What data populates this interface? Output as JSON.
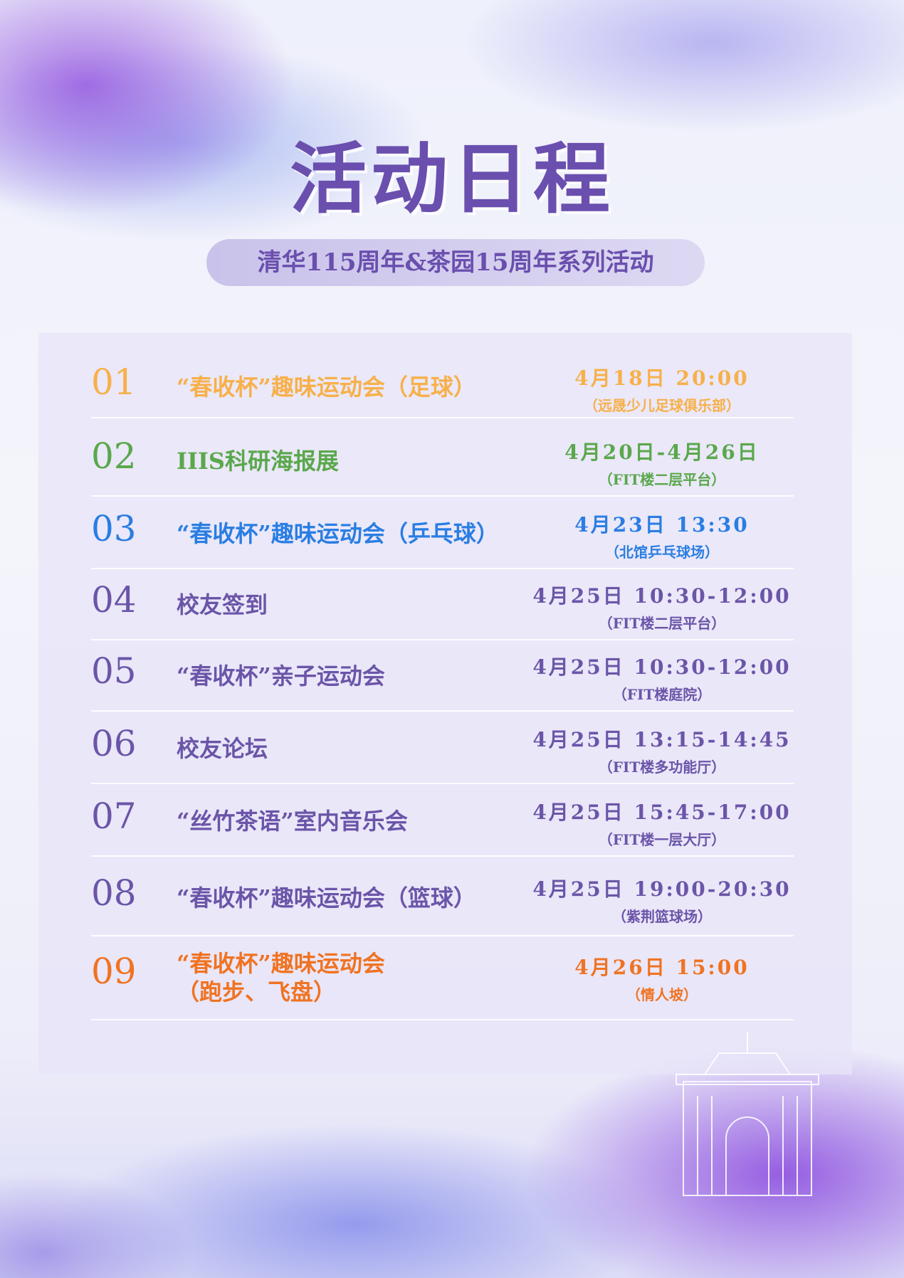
{
  "header": {
    "title": "活动日程",
    "subtitle": "清华115周年&茶园15周年系列活动"
  },
  "colors": {
    "title": "#6a4fae",
    "row1": "#f7b04a",
    "row2": "#5aa84c",
    "row3": "#2a7ee2",
    "default": "#6b55a8",
    "row9": "#f07322"
  },
  "events": [
    {
      "num": "01",
      "name": "“春收杯”趣味运动会（足球）",
      "time": "4月18日 20:00",
      "place": "（远晟少儿足球俱乐部）",
      "color": "#f7b04a"
    },
    {
      "num": "02",
      "name": "IIIS科研海报展",
      "time": "4月20日-4月26日",
      "place": "（FIT楼二层平台）",
      "color": "#5aa84c"
    },
    {
      "num": "03",
      "name": "“春收杯”趣味运动会（乒乓球）",
      "time": "4月23日 13:30",
      "place": "（北馆乒乓球场）",
      "color": "#2a7ee2"
    },
    {
      "num": "04",
      "name": "校友签到",
      "time": "4月25日 10:30-12:00",
      "place": "（FIT楼二层平台）",
      "color": "#6b55a8"
    },
    {
      "num": "05",
      "name": "“春收杯”亲子运动会",
      "time": "4月25日 10:30-12:00",
      "place": "（FIT楼庭院）",
      "color": "#6b55a8"
    },
    {
      "num": "06",
      "name": "校友论坛",
      "time": "4月25日 13:15-14:45",
      "place": "（FIT楼多功能厅）",
      "color": "#6b55a8"
    },
    {
      "num": "07",
      "name": "“丝竹茶语”室内音乐会",
      "time": "4月25日 15:45-17:00",
      "place": "（FIT楼一层大厅）",
      "color": "#6b55a8"
    },
    {
      "num": "08",
      "name": "“春收杯”趣味运动会（篮球）",
      "time": "4月25日 19:00-20:30",
      "place": "（紫荆篮球场）",
      "color": "#6b55a8"
    },
    {
      "num": "09",
      "name": "“春收杯”趣味运动会\n（跑步、飞盘）",
      "time": "4月26日 15:00",
      "place": "（情人坡）",
      "color": "#f07322"
    }
  ]
}
